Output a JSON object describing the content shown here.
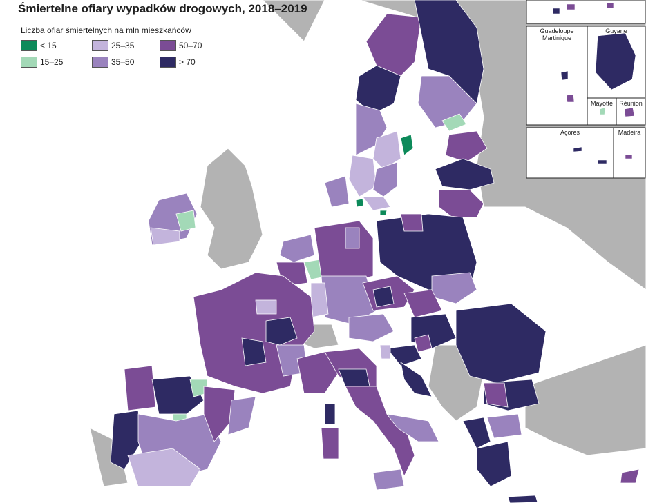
{
  "title": "Śmiertelne ofiary wypadków drogowych, 2018–2019",
  "legend": {
    "title": "Liczba ofiar śmiertelnych na mln mieszkańców",
    "classes": [
      {
        "label": "< 15",
        "color": "#0d8a5a"
      },
      {
        "label": "15–25",
        "color": "#a3d9b7"
      },
      {
        "label": "25–35",
        "color": "#c3b4dc"
      },
      {
        "label": "35–50",
        "color": "#9a83be"
      },
      {
        "label": "50–70",
        "color": "#7b4c95"
      },
      {
        "label": "> 70",
        "color": "#2e2a63"
      }
    ]
  },
  "colors": {
    "non_eu": "#b3b3b3",
    "sea": "#ffffff",
    "border": "#f2f2f2"
  },
  "insets": {
    "guadeloupe_martinique": "Guadeloupe\nMartinique",
    "guyane": "Guyane",
    "mayotte": "Mayotte",
    "reunion": "Réunion",
    "acores": "Açores",
    "madeira": "Madeira"
  }
}
